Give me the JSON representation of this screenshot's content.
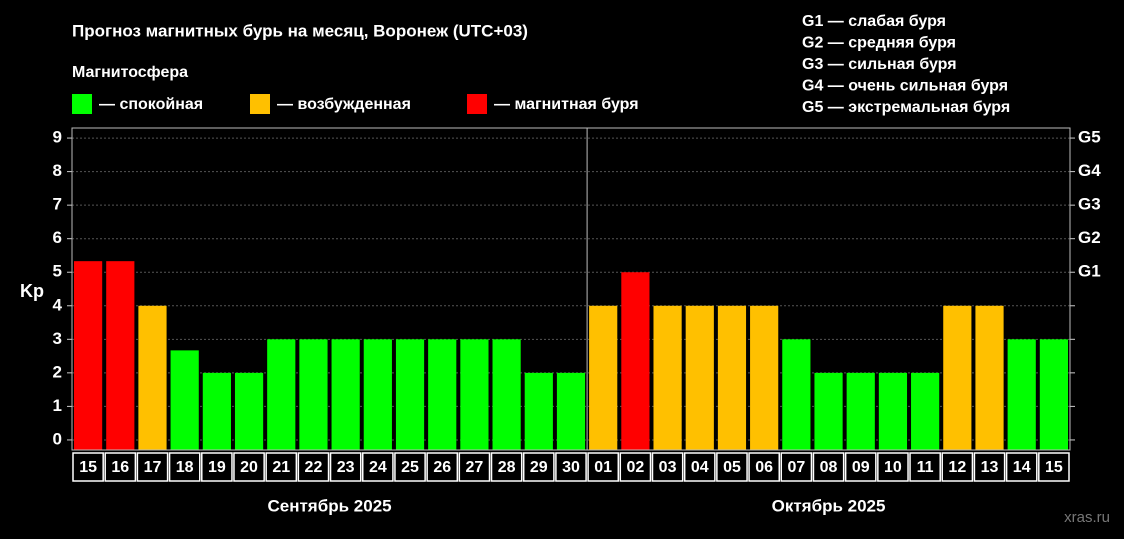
{
  "chart_data": {
    "type": "bar",
    "title": "Прогноз магнитных бурь на месяц, Воронеж (UTC+03)",
    "legend_title": "Магнитосфера",
    "legend": [
      {
        "name": "— спокойная",
        "color": "#00ff00"
      },
      {
        "name": "— возбужденная",
        "color": "#ffc000"
      },
      {
        "name": "— магнитная буря",
        "color": "#ff0000"
      }
    ],
    "storm_scale": [
      "G1 — слабая буря",
      "G2 — средняя буря",
      "G3 — сильная буря",
      "G4 — очень сильная буря",
      "G5 — экстремальная буря"
    ],
    "y_label": "Kp",
    "ylim": [
      -0.3,
      9.3
    ],
    "yticks": [
      0,
      1,
      2,
      3,
      4,
      5,
      6,
      7,
      8,
      9
    ],
    "y2ticks": [
      {
        "value": 5,
        "label": "G1"
      },
      {
        "value": 6,
        "label": "G2"
      },
      {
        "value": 7,
        "label": "G3"
      },
      {
        "value": 8,
        "label": "G4"
      },
      {
        "value": 9,
        "label": "G5"
      }
    ],
    "grid": true,
    "groups": [
      {
        "name": "Сентябрь 2025",
        "categories": [
          "15",
          "16",
          "17",
          "18",
          "19",
          "20",
          "21",
          "22",
          "23",
          "24",
          "25",
          "26",
          "27",
          "28",
          "29",
          "30"
        ],
        "values": [
          5.33,
          5.33,
          4,
          2.67,
          2,
          2,
          3,
          3,
          3,
          3,
          3,
          3,
          3,
          3,
          2,
          2
        ],
        "colors": [
          "#ff0000",
          "#ff0000",
          "#ffc000",
          "#00ff00",
          "#00ff00",
          "#00ff00",
          "#00ff00",
          "#00ff00",
          "#00ff00",
          "#00ff00",
          "#00ff00",
          "#00ff00",
          "#00ff00",
          "#00ff00",
          "#00ff00",
          "#00ff00"
        ]
      },
      {
        "name": "Октябрь 2025",
        "categories": [
          "01",
          "02",
          "03",
          "04",
          "05",
          "06",
          "07",
          "08",
          "09",
          "10",
          "11",
          "12",
          "13",
          "14",
          "15"
        ],
        "values": [
          4,
          5,
          4,
          4,
          4,
          4,
          3,
          2,
          2,
          2,
          2,
          4,
          4,
          3,
          3
        ],
        "colors": [
          "#ffc000",
          "#ff0000",
          "#ffc000",
          "#ffc000",
          "#ffc000",
          "#ffc000",
          "#00ff00",
          "#00ff00",
          "#00ff00",
          "#00ff00",
          "#00ff00",
          "#ffc000",
          "#ffc000",
          "#00ff00",
          "#00ff00"
        ]
      }
    ],
    "watermark": "xras.ru"
  }
}
